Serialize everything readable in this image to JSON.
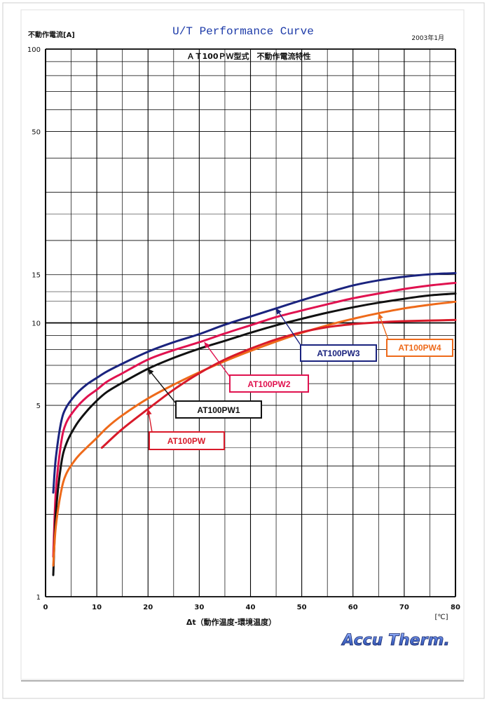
{
  "page": {
    "title": "U/T Performance Curve",
    "date": "2003年1月",
    "ylabel": "不動作電流[A]",
    "subtitle": "ＡＴ100ＰＷ型式　不動作電流特性",
    "xlabel": "Δt（動作温度-環境温度）",
    "xunit": "[℃]",
    "brand": "Accu Therm."
  },
  "colors": {
    "AT100PW": "#d81a2a",
    "AT100PW1": "#111111",
    "AT100PW2": "#e0124f",
    "AT100PW3": "#1a237e",
    "AT100PW4": "#ee6a1a",
    "grid": "#000000",
    "brand_fill": "#4a6fd0"
  },
  "chart_data": {
    "type": "line",
    "title": "ＡＴ100ＰＷ型式　不動作電流特性",
    "xlabel": "Δt（動作温度-環境温度）",
    "ylabel": "不動作電流[A]",
    "x_unit": "[℃]",
    "xlim": [
      0,
      80
    ],
    "ylim": [
      1,
      100
    ],
    "y_scale": "log",
    "grid": true,
    "x_ticks": [
      0,
      10,
      20,
      30,
      40,
      50,
      60,
      70,
      80
    ],
    "y_ticks": [
      1,
      5,
      10,
      15,
      50,
      100
    ],
    "series": [
      {
        "name": "AT100PW3",
        "label": "AT100PW3",
        "x": [
          1.5,
          2,
          3,
          4,
          6,
          8,
          10,
          12,
          15,
          20,
          25,
          30,
          35,
          40,
          45,
          50,
          55,
          60,
          65,
          70,
          75,
          80
        ],
        "y": [
          2.4,
          3.2,
          4.3,
          4.9,
          5.5,
          5.95,
          6.3,
          6.65,
          7.1,
          7.85,
          8.5,
          9.1,
          9.85,
          10.55,
          11.3,
          12.1,
          12.9,
          13.7,
          14.3,
          14.75,
          15.05,
          15.2
        ]
      },
      {
        "name": "AT100PW2",
        "label": "AT100PW2",
        "x": [
          1.5,
          2,
          3,
          4,
          6,
          8,
          10,
          12,
          15,
          20,
          25,
          30,
          35,
          40,
          45,
          50,
          55,
          60,
          65,
          70,
          75,
          80
        ],
        "y": [
          1.4,
          2.4,
          3.6,
          4.3,
          4.9,
          5.35,
          5.7,
          6.1,
          6.55,
          7.35,
          7.95,
          8.5,
          9.15,
          9.8,
          10.5,
          11.1,
          11.7,
          12.3,
          12.8,
          13.3,
          13.7,
          14.0
        ]
      },
      {
        "name": "AT100PW1",
        "label": "AT100PW1",
        "x": [
          1.5,
          2,
          3,
          4,
          6,
          8,
          10,
          12,
          15,
          20,
          25,
          30,
          35,
          40,
          45,
          50,
          55,
          60,
          65,
          70,
          75,
          80
        ],
        "y": [
          1.2,
          2.0,
          3.0,
          3.6,
          4.25,
          4.75,
          5.2,
          5.6,
          6.05,
          6.8,
          7.45,
          8.05,
          8.6,
          9.2,
          9.8,
          10.35,
          10.9,
          11.4,
          11.85,
          12.25,
          12.6,
          12.8
        ]
      },
      {
        "name": "AT100PW4",
        "label": "AT100PW4",
        "x": [
          1.5,
          2,
          3,
          4,
          6,
          8,
          10,
          12,
          15,
          20,
          25,
          30,
          35,
          40,
          45,
          50,
          55,
          60,
          65,
          70,
          75,
          80
        ],
        "y": [
          1.3,
          1.8,
          2.4,
          2.8,
          3.2,
          3.5,
          3.8,
          4.15,
          4.6,
          5.3,
          5.95,
          6.6,
          7.25,
          7.9,
          8.55,
          9.2,
          9.8,
          10.35,
          10.85,
          11.3,
          11.65,
          11.95
        ]
      },
      {
        "name": "AT100PW",
        "label": "AT100PW",
        "x": [
          11,
          15,
          20,
          25,
          30,
          35,
          40,
          45,
          50,
          55,
          60,
          65,
          70,
          75,
          80
        ],
        "y": [
          3.5,
          4.1,
          4.85,
          5.7,
          6.55,
          7.35,
          8.05,
          8.7,
          9.25,
          9.65,
          9.9,
          10.05,
          10.15,
          10.2,
          10.25
        ]
      }
    ],
    "callouts": [
      {
        "series": "AT100PW3",
        "label": "AT100PW3",
        "arrow_to": [
          45,
          11.3
        ]
      },
      {
        "series": "AT100PW2",
        "label": "AT100PW2",
        "arrow_to": [
          31,
          8.5
        ]
      },
      {
        "series": "AT100PW1",
        "label": "AT100PW1",
        "arrow_to": [
          20,
          6.8
        ]
      },
      {
        "series": "AT100PW4",
        "label": "AT100PW4",
        "arrow_to": [
          65,
          10.85
        ]
      },
      {
        "series": "AT100PW",
        "label": "AT100PW",
        "arrow_to": [
          20,
          4.85
        ]
      }
    ]
  }
}
